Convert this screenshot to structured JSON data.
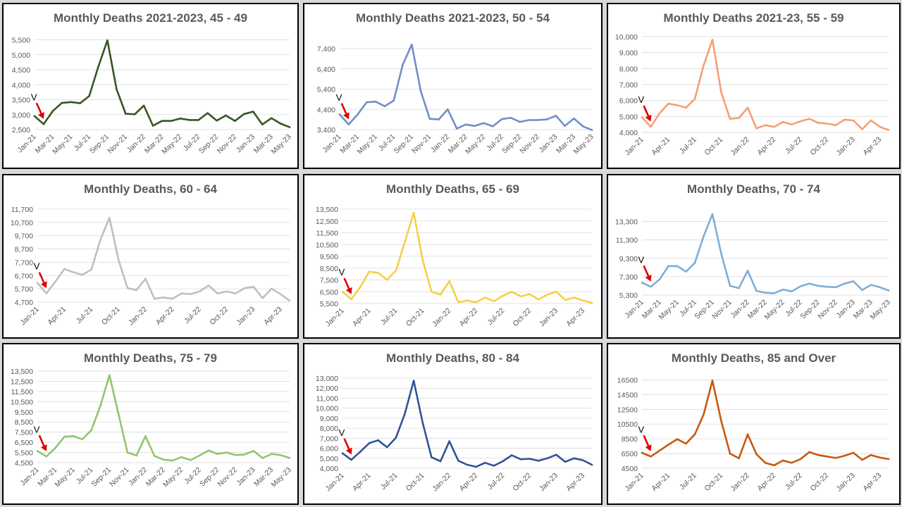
{
  "chart_data": [
    {
      "type": "line",
      "title": "Monthly Deaths 2021-2023, 45 - 49",
      "color": "#375623",
      "yticks": [
        "2,500",
        "3,000",
        "3,500",
        "4,000",
        "4,500",
        "5,000",
        "5,500"
      ],
      "ylim": [
        2500,
        5700
      ],
      "xticks": [
        "Jan-21",
        "Mar-21",
        "May-21",
        "Jul-21",
        "Sep-21",
        "Nov-21",
        "Jan-22",
        "Mar-22",
        "May-22",
        "Jul-22",
        "Sep-22",
        "Nov-22",
        "Jan-23",
        "Mar-23",
        "May-23"
      ],
      "tick_step": 2,
      "marker_label": "V",
      "values": [
        2950,
        2680,
        3120,
        3390,
        3420,
        3380,
        3620,
        4600,
        5480,
        3850,
        3030,
        3010,
        3300,
        2630,
        2790,
        2790,
        2870,
        2820,
        2820,
        3050,
        2800,
        2970,
        2790,
        3020,
        3100,
        2670,
        2880,
        2700,
        2580
      ]
    },
    {
      "type": "line",
      "title": "Monthly Deaths 2021-2023, 50 - 54",
      "color": "#6f8fc9",
      "yticks": [
        "3,400",
        "4,400",
        "5,400",
        "6,400",
        "7,400"
      ],
      "ylim": [
        3400,
        8200
      ],
      "xticks": [
        "Jan-21",
        "Mar-21",
        "May-21",
        "Jul-21",
        "Sep-21",
        "Nov-21",
        "Jan-22",
        "Mar-22",
        "May-22",
        "Jul-22",
        "Sep-22",
        "Nov-22",
        "Jan-23",
        "Mar-23",
        "May-23"
      ],
      "tick_step": 2,
      "marker_label": "V",
      "values": [
        4150,
        3650,
        4150,
        4750,
        4780,
        4550,
        4830,
        6600,
        7600,
        5300,
        3930,
        3900,
        4400,
        3450,
        3650,
        3580,
        3720,
        3560,
        3920,
        3980,
        3780,
        3870,
        3870,
        3900,
        4080,
        3580,
        3950,
        3560,
        3380
      ]
    },
    {
      "type": "line",
      "title": "Monthly Deaths 2021-23, 55 - 59",
      "color": "#f4a072",
      "yticks": [
        "4,000",
        "5,000",
        "6,000",
        "7,000",
        "8,000",
        "9,000",
        "10,000"
      ],
      "ylim": [
        4000,
        10000
      ],
      "xticks": [
        "Jan-21",
        "Apr-21",
        "Jul-21",
        "Oct-21",
        "Jan-22",
        "Apr-22",
        "Jul-22",
        "Oct-22",
        "Jan-23",
        "Apr-23"
      ],
      "tick_step": 3,
      "marker_label": "V",
      "values": [
        4950,
        4350,
        5200,
        5800,
        5700,
        5550,
        6100,
        8200,
        9800,
        6500,
        4850,
        4900,
        5550,
        4250,
        4450,
        4350,
        4650,
        4500,
        4700,
        4850,
        4600,
        4550,
        4450,
        4800,
        4750,
        4200,
        4750,
        4350,
        4150
      ]
    },
    {
      "type": "line",
      "title": "Monthly Deaths, 60 - 64",
      "color": "#bfbfbf",
      "yticks": [
        "4,700",
        "5,700",
        "6,700",
        "7,700",
        "8,700",
        "9,700",
        "10,700",
        "11,700"
      ],
      "ylim": [
        4700,
        11700
      ],
      "xticks": [
        "Jan-21",
        "Apr-21",
        "Jul-21",
        "Oct-21",
        "Jan-22",
        "Apr-22",
        "Jul-22",
        "Oct-22",
        "Jan-23",
        "Apr-23"
      ],
      "tick_step": 3,
      "marker_label": "V",
      "values": [
        6150,
        5350,
        6250,
        7200,
        6950,
        6750,
        7150,
        9400,
        11050,
        7900,
        5750,
        5600,
        6450,
        4950,
        5050,
        4950,
        5350,
        5300,
        5500,
        5950,
        5350,
        5500,
        5350,
        5750,
        5850,
        5000,
        5700,
        5300,
        4800
      ]
    },
    {
      "type": "line",
      "title": "Monthly Deaths, 65 - 69",
      "color": "#f7cf46",
      "yticks": [
        "5,500",
        "6,500",
        "7,500",
        "8,500",
        "9,500",
        "10,500",
        "11,500",
        "12,500",
        "13,500"
      ],
      "ylim": [
        5500,
        13500
      ],
      "xticks": [
        "Jan-21",
        "Apr-21",
        "Jul-21",
        "Oct-21",
        "Jan-22",
        "Apr-22",
        "Jul-22",
        "Oct-22",
        "Jan-23",
        "Apr-23"
      ],
      "tick_step": 3,
      "marker_label": "V",
      "values": [
        6500,
        5850,
        6900,
        8200,
        8100,
        7500,
        8300,
        10700,
        13200,
        9200,
        6500,
        6250,
        7400,
        5600,
        5750,
        5600,
        6000,
        5700,
        6150,
        6500,
        6100,
        6300,
        5850,
        6250,
        6500,
        5800,
        6000,
        5750,
        5550
      ]
    },
    {
      "type": "line",
      "title": "Monthly Deaths, 70 - 74",
      "color": "#7faed6",
      "yticks": [
        "5,300",
        "7,300",
        "9,300",
        "11,300",
        "13,300"
      ],
      "ylim": [
        5300,
        14800
      ],
      "xticks": [
        "Jan-21",
        "Mar-21",
        "May-21",
        "Jul-21",
        "Sep-21",
        "Nov-21",
        "Jan-22",
        "Mar-22",
        "May-22",
        "Jul-22",
        "Sep-22",
        "Nov-22",
        "Jan-23",
        "Mar-23",
        "May-23"
      ],
      "tick_step": 2,
      "marker_label": "V",
      "values": [
        6650,
        6200,
        7000,
        8450,
        8450,
        7850,
        8800,
        11700,
        14100,
        9800,
        6300,
        6050,
        7950,
        5750,
        5550,
        5500,
        5900,
        5700,
        6250,
        6550,
        6300,
        6200,
        6150,
        6550,
        6800,
        5850,
        6400,
        6150,
        5800
      ]
    },
    {
      "type": "line",
      "title": "Monthly Deaths, 75 - 79",
      "color": "#92c56f",
      "yticks": [
        "4,500",
        "5,500",
        "6,500",
        "7,500",
        "8,500",
        "9,500",
        "10,500",
        "11,500",
        "12,500",
        "13,500"
      ],
      "ylim": [
        4500,
        13500
      ],
      "xticks": [
        "Jan-21",
        "Mar-21",
        "May-21",
        "Jul-21",
        "Sep-21",
        "Nov-21",
        "Jan-22",
        "Mar-22",
        "May-22",
        "Jul-22",
        "Sep-22",
        "Nov-22",
        "Jan-23",
        "Mar-23",
        "May-23"
      ],
      "tick_step": 2,
      "marker_label": "V",
      "values": [
        5650,
        5100,
        5950,
        7050,
        7100,
        6800,
        7700,
        10100,
        13100,
        9300,
        5500,
        5200,
        7100,
        5150,
        4800,
        4700,
        5050,
        4750,
        5200,
        5700,
        5350,
        5500,
        5250,
        5300,
        5650,
        4950,
        5350,
        5250,
        4950
      ]
    },
    {
      "type": "line",
      "title": "Monthly Deaths, 80 - 84",
      "color": "#2f5597",
      "yticks": [
        "4,000",
        "5,000",
        "6,000",
        "7,000",
        "8,000",
        "9,000",
        "10,000",
        "11,000",
        "12,000",
        "13,000"
      ],
      "ylim": [
        4000,
        13000
      ],
      "xticks": [
        "Jan-21",
        "Apr-21",
        "Jul-21",
        "Oct-21",
        "Jan-22",
        "Apr-22",
        "Jul-22",
        "Oct-22",
        "Jan-23",
        "Apr-23"
      ],
      "tick_step": 3,
      "marker_label": "V",
      "values": [
        5500,
        4850,
        5650,
        6500,
        6800,
        6100,
        7050,
        9450,
        12750,
        8550,
        5100,
        4700,
        6700,
        4750,
        4350,
        4150,
        4550,
        4250,
        4700,
        5300,
        4900,
        4950,
        4750,
        5000,
        5350,
        4650,
        5000,
        4800,
        4350
      ]
    },
    {
      "type": "line",
      "title": "Monthly Deaths, 85 and Over",
      "color": "#c65911",
      "yticks": [
        "4500",
        "6500",
        "8500",
        "10500",
        "12500",
        "14500",
        "16500"
      ],
      "ylim": [
        4500,
        17500
      ],
      "xticks": [
        "Jan-21",
        "Apr-21",
        "Jul-21",
        "Oct-21",
        "Jan-22",
        "Apr-22",
        "Jul-22",
        "Oct-22",
        "Jan-23",
        "Apr-23"
      ],
      "tick_step": 3,
      "marker_label": "V",
      "values": [
        6600,
        6100,
        6900,
        7700,
        8450,
        7850,
        9100,
        11800,
        16400,
        10900,
        6500,
        5850,
        9100,
        6400,
        5250,
        4900,
        5550,
        5250,
        5750,
        6700,
        6300,
        6100,
        5900,
        6200,
        6600,
        5650,
        6300,
        5950,
        5750
      ]
    }
  ]
}
